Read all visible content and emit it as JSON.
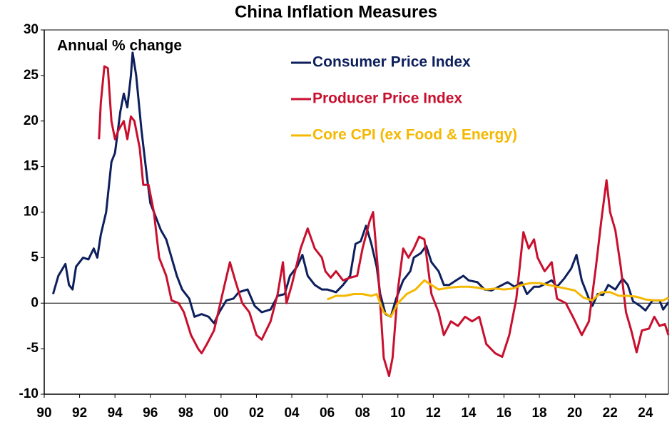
{
  "chart_data": {
    "type": "line",
    "title": "China Inflation Measures",
    "annotation": "Annual % change",
    "xlim": [
      1990,
      2025.3
    ],
    "ylim": [
      -10,
      30
    ],
    "xticks": [
      {
        "value": 1990,
        "label": "90"
      },
      {
        "value": 1992,
        "label": "92"
      },
      {
        "value": 1994,
        "label": "94"
      },
      {
        "value": 1996,
        "label": "96"
      },
      {
        "value": 1998,
        "label": "98"
      },
      {
        "value": 2000,
        "label": "00"
      },
      {
        "value": 2002,
        "label": "02"
      },
      {
        "value": 2004,
        "label": "04"
      },
      {
        "value": 2006,
        "label": "06"
      },
      {
        "value": 2008,
        "label": "08"
      },
      {
        "value": 2010,
        "label": "10"
      },
      {
        "value": 2012,
        "label": "12"
      },
      {
        "value": 2014,
        "label": "14"
      },
      {
        "value": 2016,
        "label": "16"
      },
      {
        "value": 2018,
        "label": "18"
      },
      {
        "value": 2020,
        "label": "20"
      },
      {
        "value": 2022,
        "label": "22"
      },
      {
        "value": 2024,
        "label": "24"
      }
    ],
    "yticks": [
      -10,
      -5,
      0,
      5,
      10,
      15,
      20,
      25,
      30
    ],
    "grid": false,
    "series": [
      {
        "name": "Consumer Price Index",
        "color": "#0d1f5c",
        "x": [
          1990.5,
          1990.8,
          1991.2,
          1991.4,
          1991.6,
          1991.8,
          1992.2,
          1992.5,
          1992.8,
          1993.0,
          1993.2,
          1993.5,
          1993.8,
          1994.0,
          1994.3,
          1994.5,
          1994.7,
          1994.9,
          1995.0,
          1995.2,
          1995.5,
          1995.8,
          1996.0,
          1996.3,
          1996.6,
          1996.9,
          1997.2,
          1997.5,
          1997.8,
          1998.2,
          1998.5,
          1998.9,
          1999.3,
          1999.6,
          1999.9,
          2000.3,
          2000.7,
          2001.0,
          2001.5,
          2001.9,
          2002.3,
          2002.8,
          2003.2,
          2003.6,
          2003.9,
          2004.3,
          2004.6,
          2004.9,
          2005.3,
          2005.7,
          2006.0,
          2006.5,
          2006.9,
          2007.3,
          2007.6,
          2007.9,
          2008.2,
          2008.5,
          2008.8,
          2009.0,
          2009.3,
          2009.6,
          2009.9,
          2010.3,
          2010.7,
          2010.9,
          2011.3,
          2011.6,
          2011.9,
          2012.3,
          2012.6,
          2012.9,
          2013.3,
          2013.7,
          2014.0,
          2014.5,
          2014.9,
          2015.3,
          2015.7,
          2016.2,
          2016.6,
          2017.0,
          2017.3,
          2017.7,
          2018.0,
          2018.3,
          2018.7,
          2019.0,
          2019.4,
          2019.8,
          2020.1,
          2020.4,
          2020.8,
          2021.0,
          2021.3,
          2021.6,
          2021.9,
          2022.3,
          2022.7,
          2023.0,
          2023.3,
          2023.7,
          2024.0,
          2024.4,
          2024.8,
          2025.0,
          2025.3
        ],
        "values": [
          1,
          3,
          4.3,
          2,
          1.5,
          4,
          5,
          4.8,
          6,
          5,
          7.5,
          10,
          15.5,
          16.5,
          21,
          23,
          21.5,
          25,
          27.5,
          25,
          19,
          14,
          11,
          9.5,
          8,
          7,
          5,
          3,
          1.5,
          0.5,
          -1.5,
          -1.2,
          -1.5,
          -2.2,
          -1,
          0.3,
          0.5,
          1.2,
          1.5,
          -0.3,
          -1,
          -0.7,
          0.8,
          1,
          3,
          4,
          5.3,
          3,
          2,
          1.5,
          1.5,
          1.2,
          2,
          3,
          6.5,
          6.8,
          8.5,
          6.5,
          4,
          1,
          -1.2,
          -1.5,
          0.5,
          2.5,
          3.5,
          5,
          5.5,
          6.3,
          4.5,
          3.5,
          2,
          2,
          2.5,
          3,
          2.5,
          2.3,
          1.5,
          1.4,
          1.8,
          2.3,
          1.8,
          2.3,
          1,
          1.8,
          1.8,
          2.1,
          2.5,
          1.8,
          2.7,
          3.8,
          5.3,
          2.5,
          0.5,
          -0.3,
          1,
          0.9,
          2,
          1.5,
          2.7,
          2,
          0.2,
          -0.3,
          -0.8,
          0.3,
          0.3,
          -0.7,
          0.1
        ]
      },
      {
        "name": "Producer Price Index",
        "color": "#c8102e",
        "x": [
          1993.1,
          1993.2,
          1993.4,
          1993.6,
          1993.8,
          1994.0,
          1994.2,
          1994.5,
          1994.7,
          1994.9,
          1995.1,
          1995.4,
          1995.6,
          1995.9,
          1996.2,
          1996.5,
          1996.9,
          1997.2,
          1997.6,
          1997.9,
          1998.3,
          1998.7,
          1998.9,
          1999.2,
          1999.6,
          1999.9,
          2000.2,
          2000.5,
          2000.8,
          2001.2,
          2001.6,
          2002.0,
          2002.3,
          2002.8,
          2003.2,
          2003.5,
          2003.7,
          2004.0,
          2004.5,
          2004.9,
          2005.3,
          2005.7,
          2005.9,
          2006.2,
          2006.5,
          2006.9,
          2007.3,
          2007.7,
          2008.0,
          2008.4,
          2008.6,
          2008.9,
          2009.2,
          2009.5,
          2009.7,
          2010.0,
          2010.3,
          2010.6,
          2010.9,
          2011.2,
          2011.5,
          2011.9,
          2012.3,
          2012.6,
          2013.0,
          2013.4,
          2013.8,
          2014.2,
          2014.6,
          2015.0,
          2015.5,
          2015.9,
          2016.3,
          2016.7,
          2017.1,
          2017.4,
          2017.7,
          2017.9,
          2018.3,
          2018.7,
          2019.0,
          2019.5,
          2019.9,
          2020.4,
          2020.8,
          2021.2,
          2021.5,
          2021.8,
          2022.0,
          2022.3,
          2022.6,
          2022.9,
          2023.2,
          2023.5,
          2023.8,
          2024.2,
          2024.5,
          2024.8,
          2025.1,
          2025.3
        ],
        "values": [
          18,
          22,
          26,
          25.8,
          20,
          18,
          19,
          20,
          18,
          20.5,
          20,
          17,
          13,
          13,
          10,
          5,
          3,
          0.3,
          0,
          -1,
          -3.5,
          -5,
          -5.5,
          -4.5,
          -3,
          -0.5,
          2,
          4.5,
          2.5,
          0,
          -1,
          -3.5,
          -4,
          -2,
          1,
          4.5,
          0,
          2,
          6,
          8.2,
          6,
          5,
          3.5,
          2.8,
          3.5,
          2.5,
          2.8,
          3,
          6,
          9,
          10,
          3,
          -6,
          -8,
          -6,
          1.5,
          6,
          5,
          6,
          7.3,
          7,
          1,
          -1,
          -3.5,
          -2,
          -2.5,
          -1.5,
          -2,
          -1.5,
          -4.5,
          -5.5,
          -5.9,
          -3.5,
          0.5,
          7.8,
          6,
          7,
          5,
          3.5,
          4.5,
          0.5,
          0,
          -1.5,
          -3.5,
          -2,
          4,
          9,
          13.5,
          10,
          8,
          4,
          -1,
          -3,
          -5.4,
          -3,
          -2.8,
          -1.5,
          -2.5,
          -2.3,
          -3.5
        ]
      },
      {
        "name": "Core CPI (ex Food & Energy)",
        "color": "#f5b800",
        "x": [
          2006.0,
          2006.5,
          2007.0,
          2007.5,
          2008.0,
          2008.5,
          2008.8,
          2009.2,
          2009.6,
          2010.0,
          2010.5,
          2011.0,
          2011.5,
          2011.9,
          2012.3,
          2012.9,
          2013.5,
          2014.0,
          2014.5,
          2015.0,
          2015.5,
          2016.0,
          2016.5,
          2017.0,
          2017.5,
          2018.0,
          2018.5,
          2019.0,
          2019.5,
          2020.0,
          2020.5,
          2021.0,
          2021.5,
          2022.0,
          2022.5,
          2023.0,
          2023.5,
          2024.0,
          2024.5,
          2025.0,
          2025.3
        ],
        "values": [
          0.4,
          0.8,
          0.8,
          1,
          1,
          0.8,
          1,
          -1,
          -1.5,
          0,
          1,
          1.5,
          2.5,
          2,
          1.5,
          1.7,
          1.8,
          1.8,
          1.7,
          1.5,
          1.6,
          1.5,
          1.6,
          2,
          2.2,
          2.2,
          2,
          1.8,
          1.6,
          1.4,
          0.6,
          0.3,
          1.2,
          1.2,
          0.8,
          0.8,
          0.7,
          0.4,
          0.3,
          0.3,
          0.6
        ]
      }
    ]
  }
}
